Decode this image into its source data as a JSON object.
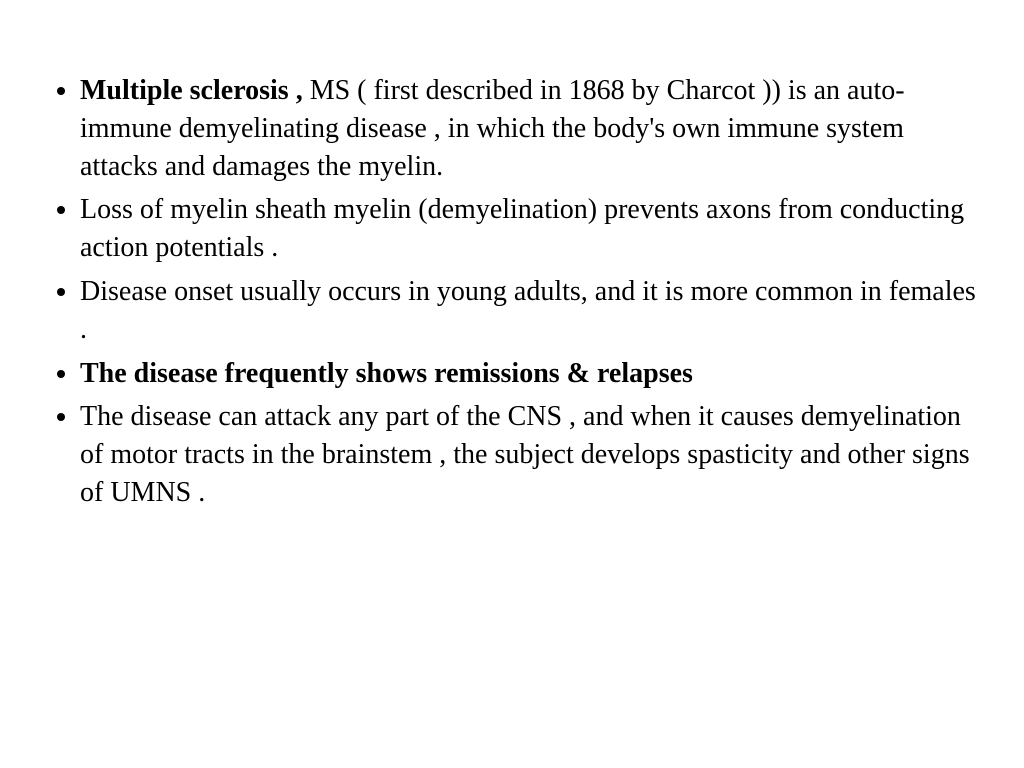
{
  "slide": {
    "background_color": "#ffffff",
    "text_color": "#000000",
    "font_family": "Comic Sans MS",
    "font_size_pt": 28,
    "line_height": 1.35,
    "bullets": [
      {
        "bold_lead": "Multiple sclerosis , ",
        "rest": "MS ( first described in 1868 by Charcot )) is an auto-immune demyelinating disease , in which the body's own immune system attacks and damages the myelin.",
        "all_bold": false
      },
      {
        "bold_lead": "",
        "rest": "Loss of myelin sheath myelin (demyelination) prevents axons from conducting action potentials .",
        "all_bold": false
      },
      {
        "bold_lead": "",
        "rest": "Disease onset usually occurs in young adults, and it is more common in females .",
        "all_bold": false
      },
      {
        "bold_lead": "",
        "rest": "The disease frequently shows remissions & relapses",
        "all_bold": true
      },
      {
        "bold_lead": "",
        "rest": "The disease can attack any part of the CNS , and when it causes demyelination of motor tracts in the brainstem ,  the subject develops spasticity and other signs of UMNS .",
        "all_bold": false
      }
    ]
  }
}
